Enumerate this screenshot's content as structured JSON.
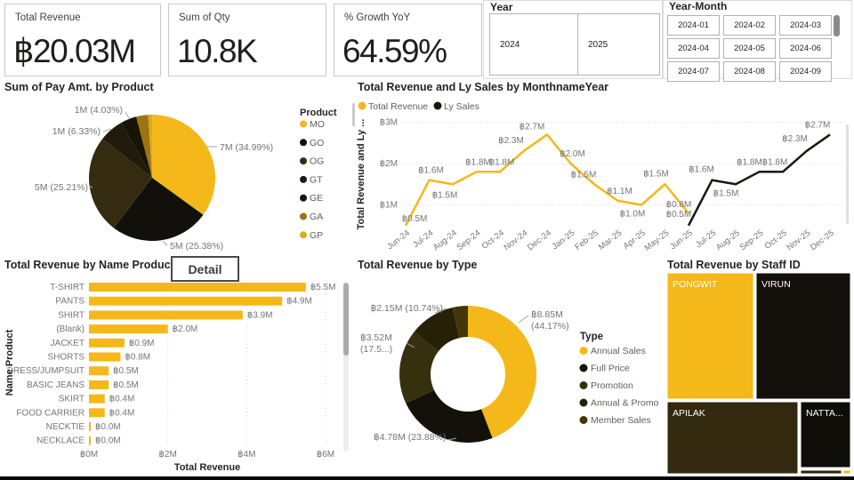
{
  "app": {
    "detail_button": "Detail"
  },
  "kpis": [
    {
      "label": "Total Revenue",
      "value": "฿20.03M"
    },
    {
      "label": "Sum of Qty",
      "value": "10.8K"
    },
    {
      "label": "% Growth YoY",
      "value": "64.59%"
    }
  ],
  "slicers": {
    "year": {
      "title": "Year",
      "options": [
        "2024",
        "2025"
      ]
    },
    "year_month": {
      "title": "Year-Month",
      "options": [
        "2024-01",
        "2024-02",
        "2024-03",
        "2024-04",
        "2024-05",
        "2024-06",
        "2024-07",
        "2024-08",
        "2024-09"
      ]
    }
  },
  "chart_data": [
    {
      "type": "pie",
      "title": "Sum of Pay Amt. by Product",
      "legend_title": "Product",
      "legend_position": "right",
      "slices": [
        {
          "label": "MO",
          "pct": 34.99,
          "value_label": "7M (34.99%)",
          "color": "#F5B81A"
        },
        {
          "label": "GO",
          "pct": 25.38,
          "value_label": "5M (25.38%)",
          "color": "#12100B"
        },
        {
          "label": "OG",
          "pct": 25.21,
          "value_label": "5M (25.21%)",
          "color": "#352B11"
        },
        {
          "label": "GT",
          "pct": 6.33,
          "value_label": "1M (6.33%)",
          "color": "#221B0B"
        },
        {
          "label": "GE",
          "pct": 4.03,
          "value_label": "1M (4.03%)",
          "color": "#191408"
        },
        {
          "label": "GA",
          "pct": 3.06,
          "value_label": null,
          "color": "#9C7512"
        },
        {
          "label": "GP",
          "pct": 1.0,
          "value_label": null,
          "color": "#D9AC20"
        }
      ]
    },
    {
      "type": "line",
      "title": "Total Revenue and Ly Sales by MonthnameYear",
      "ylabel": "Total Revenue and Ly ...",
      "yticks": [
        "฿1M",
        "฿2M",
        "฿3M"
      ],
      "ylim": [
        0,
        3
      ],
      "grid": "dotted",
      "legend_position": "top",
      "categories": [
        "Jun-24",
        "Jul-24",
        "Aug-24",
        "Sep-24",
        "Oct-24",
        "Nov-24",
        "Dec-24",
        "Jan-25",
        "Feb-25",
        "Mar-25",
        "Apr-25",
        "May-25",
        "Jun-25",
        "Jul-25",
        "Aug-25",
        "Sep-25",
        "Oct-25",
        "Nov-25",
        "Dec-25"
      ],
      "series": [
        {
          "name": "Total Revenue",
          "color": "#F5B81A",
          "values": [
            0.5,
            1.6,
            1.5,
            1.8,
            1.8,
            2.3,
            2.7,
            2.0,
            1.5,
            1.1,
            1.0,
            1.5,
            0.8,
            null,
            null,
            null,
            null,
            null,
            null
          ],
          "labels": [
            "฿0.5M",
            "฿1.6M",
            "฿1.5M",
            "฿1.8M",
            "฿1.8M",
            "฿2.3M",
            "฿2.7M",
            "฿2.0M",
            "฿1.5M",
            "฿1.1M",
            "฿1.0M",
            "฿1.5M",
            "฿0.8M",
            null,
            null,
            null,
            null,
            null,
            null
          ]
        },
        {
          "name": "Ly Sales",
          "color": "#1A1712",
          "values": [
            null,
            null,
            null,
            null,
            null,
            null,
            null,
            null,
            null,
            null,
            null,
            null,
            0.5,
            1.6,
            1.5,
            1.8,
            1.8,
            2.3,
            2.7
          ],
          "labels": [
            null,
            null,
            null,
            null,
            null,
            null,
            null,
            null,
            null,
            null,
            null,
            null,
            "฿0.5M",
            "฿1.6M",
            "฿1.5M",
            "฿1.8M",
            "฿1.8M",
            "฿2.3M",
            "฿2.7M"
          ]
        }
      ]
    },
    {
      "type": "bar",
      "title": "Total Revenue by Name Product",
      "xlabel": "Total Revenue",
      "ylabel": "Name Product",
      "xticks": [
        "฿0M",
        "฿2M",
        "฿4M",
        "฿6M"
      ],
      "xlim": [
        0,
        6
      ],
      "color": "#F5B81A",
      "categories": [
        "T-SHIRT",
        "PANTS",
        "SHIRT",
        "(Blank)",
        "JACKET",
        "SHORTS",
        "DRESS/JUMPSUIT",
        "BASIC JEANS",
        "SKIRT",
        "FOOD CARRIER",
        "NECKTIE",
        "NECKLACE"
      ],
      "values": [
        5.5,
        4.9,
        3.9,
        2.0,
        0.9,
        0.8,
        0.5,
        0.5,
        0.4,
        0.4,
        0.04,
        0.03
      ],
      "value_labels": [
        "฿5.5M",
        "฿4.9M",
        "฿3.9M",
        "฿2.0M",
        "฿0.9M",
        "฿0.8M",
        "฿0.5M",
        "฿0.5M",
        "฿0.4M",
        "฿0.4M",
        "฿0.0M",
        "฿0.0M"
      ]
    },
    {
      "type": "donut",
      "title": "Total Revenue by Type",
      "legend_title": "Type",
      "legend_position": "right",
      "slices": [
        {
          "label": "Annual Sales",
          "pct": 44.17,
          "value_label": "฿8.85M",
          "pct_label": "(44.17%)",
          "color": "#F5B81A"
        },
        {
          "label": "Full Price",
          "pct": 23.88,
          "value_label": "฿4.78M (23.88%)",
          "pct_label": null,
          "color": "#14110B"
        },
        {
          "label": "Promotion",
          "pct": 17.57,
          "value_label": "฿3.52M",
          "pct_label": "(17.5...)",
          "color": "#37300E"
        },
        {
          "label": "Annual & Promo",
          "pct": 10.74,
          "value_label": "฿2.15M (10.74%)",
          "pct_label": null,
          "color": "#262009"
        },
        {
          "label": "Member Sales",
          "pct": 3.64,
          "value_label": null,
          "pct_label": null,
          "color": "#453607"
        }
      ]
    },
    {
      "type": "treemap",
      "title": "Total Revenue by Staff ID",
      "items": [
        {
          "label": "PONGWIT",
          "color": "#F5B81A"
        },
        {
          "label": "VIRUN",
          "color": "#14110C"
        },
        {
          "label": "APILAK",
          "color": "#33290F"
        },
        {
          "label": "NATTA...",
          "color": "#0F0D08"
        },
        {
          "label": "",
          "color": "#2A2208"
        },
        {
          "label": "",
          "color": "#F5B81A"
        }
      ]
    }
  ]
}
